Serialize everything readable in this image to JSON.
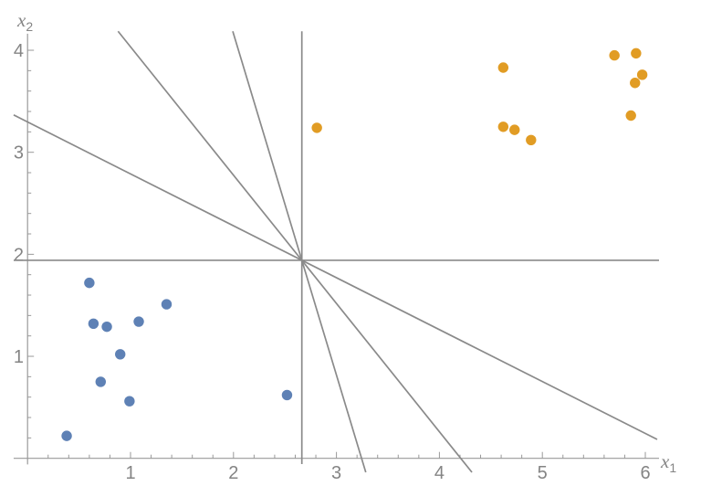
{
  "chart_data": {
    "type": "scatter",
    "title": "",
    "xlabel": "x1",
    "ylabel": "x2",
    "axis_labels": {
      "x": {
        "base": "x",
        "sub": "1"
      },
      "y": {
        "base": "x",
        "sub": "2"
      }
    },
    "xlim": [
      -0.135,
      6.133
    ],
    "ylim": [
      -0.06,
      4.163
    ],
    "x_ticks": [
      1,
      2,
      3,
      4,
      5,
      6
    ],
    "y_ticks": [
      1,
      2,
      3,
      4
    ],
    "minor_tick_step": 0.2,
    "grid": false,
    "legend": false,
    "colors": {
      "background": "#ffffff",
      "axis": "#999999",
      "tick_label": "#848484",
      "separator_line": "#8a8a8a",
      "class_blue": "#5e81b5",
      "class_orange": "#e19c24"
    },
    "series": [
      {
        "name": "class-blue",
        "color": "#5e81b5",
        "points": [
          [
            0.6,
            1.72
          ],
          [
            1.35,
            1.51
          ],
          [
            0.64,
            1.32
          ],
          [
            0.77,
            1.29
          ],
          [
            1.08,
            1.34
          ],
          [
            0.9,
            1.02
          ],
          [
            0.71,
            0.75
          ],
          [
            0.99,
            0.56
          ],
          [
            0.38,
            0.22
          ],
          [
            2.52,
            0.62
          ]
        ]
      },
      {
        "name": "class-orange",
        "color": "#e19c24",
        "points": [
          [
            2.81,
            3.24
          ],
          [
            4.62,
            3.83
          ],
          [
            5.7,
            3.95
          ],
          [
            5.91,
            3.97
          ],
          [
            5.97,
            3.76
          ],
          [
            5.9,
            3.68
          ],
          [
            5.86,
            3.36
          ],
          [
            4.62,
            3.25
          ],
          [
            4.73,
            3.22
          ],
          [
            4.89,
            3.12
          ]
        ]
      }
    ],
    "separator_lines": {
      "color": "#8a8a8a",
      "common_point": [
        2.664,
        1.941
      ],
      "segments": [
        {
          "name": "horizontal-line",
          "x1": -0.135,
          "y1": 1.941,
          "x2": 6.133,
          "y2": 1.941
        },
        {
          "name": "vertical-line",
          "x1": 2.664,
          "y1": 4.186,
          "x2": 2.664,
          "y2": -0.056
        },
        {
          "name": "steep-line",
          "x1": 1.993,
          "y1": 4.186,
          "x2": 3.285,
          "y2": -0.137
        },
        {
          "name": "medium-line",
          "x1": 0.879,
          "y1": 4.186,
          "x2": 4.316,
          "y2": -0.137
        },
        {
          "name": "shallow-line",
          "x1": -0.135,
          "y1": 3.366,
          "x2": 6.115,
          "y2": 0.185
        }
      ]
    }
  }
}
